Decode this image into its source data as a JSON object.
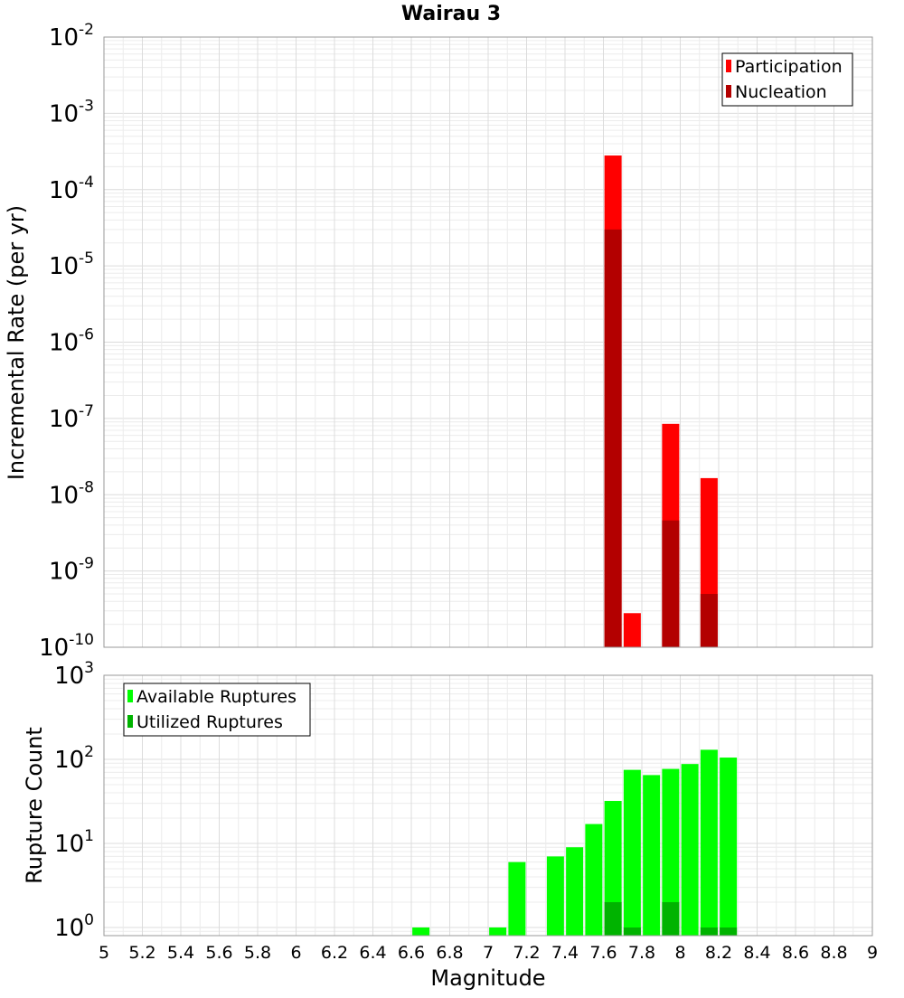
{
  "chart_data": [
    {
      "type": "bar",
      "title": "Wairau 3",
      "xlabel": "",
      "ylabel": "Incremental Rate (per yr)",
      "y_scale": "log",
      "xlim": [
        5,
        9
      ],
      "ylim": [
        1e-10,
        0.01
      ],
      "y_tick_exponents": [
        -10,
        -9,
        -8,
        -7,
        -6,
        -5,
        -4,
        -3,
        -2
      ],
      "grid": true,
      "legend_position": "top-right",
      "overlay_bars": true,
      "series": [
        {
          "name": "Participation",
          "color": "#ff0000",
          "points": [
            {
              "x": 7.65,
              "y": 0.00028
            },
            {
              "x": 7.75,
              "y": 2.8e-10
            },
            {
              "x": 7.95,
              "y": 8.5e-08
            },
            {
              "x": 8.15,
              "y": 1.65e-08
            }
          ]
        },
        {
          "name": "Nucleation",
          "color": "#b30000",
          "points": [
            {
              "x": 7.65,
              "y": 3e-05
            },
            {
              "x": 7.95,
              "y": 4.6e-09
            },
            {
              "x": 8.15,
              "y": 5e-10
            }
          ]
        }
      ]
    },
    {
      "type": "bar",
      "title": "",
      "xlabel": "Magnitude",
      "ylabel": "Rupture Count",
      "y_scale": "log",
      "xlim": [
        5,
        9
      ],
      "ylim": [
        0.8,
        1000
      ],
      "y_tick_exponents": [
        0,
        1,
        2,
        3
      ],
      "x_tick_labels": [
        "5",
        "5.2",
        "5.4",
        "5.6",
        "5.8",
        "6",
        "6.2",
        "6.4",
        "6.6",
        "6.8",
        "7",
        "7.2",
        "7.4",
        "7.6",
        "7.8",
        "8",
        "8.2",
        "8.4",
        "8.6",
        "8.8",
        "9"
      ],
      "grid": true,
      "legend_position": "top-left",
      "overlay_bars": true,
      "series": [
        {
          "name": "Available Ruptures",
          "color": "#00ff00",
          "points": [
            {
              "x": 6.65,
              "y": 1
            },
            {
              "x": 7.05,
              "y": 1
            },
            {
              "x": 7.15,
              "y": 6
            },
            {
              "x": 7.35,
              "y": 7
            },
            {
              "x": 7.45,
              "y": 9
            },
            {
              "x": 7.55,
              "y": 17
            },
            {
              "x": 7.65,
              "y": 32
            },
            {
              "x": 7.75,
              "y": 75
            },
            {
              "x": 7.85,
              "y": 65
            },
            {
              "x": 7.95,
              "y": 77
            },
            {
              "x": 8.05,
              "y": 88
            },
            {
              "x": 8.15,
              "y": 130
            },
            {
              "x": 8.25,
              "y": 105
            }
          ]
        },
        {
          "name": "Utilized Ruptures",
          "color": "#00b300",
          "points": [
            {
              "x": 7.65,
              "y": 2
            },
            {
              "x": 7.75,
              "y": 1
            },
            {
              "x": 7.95,
              "y": 2
            },
            {
              "x": 8.15,
              "y": 1
            },
            {
              "x": 8.25,
              "y": 1
            }
          ]
        }
      ]
    }
  ]
}
